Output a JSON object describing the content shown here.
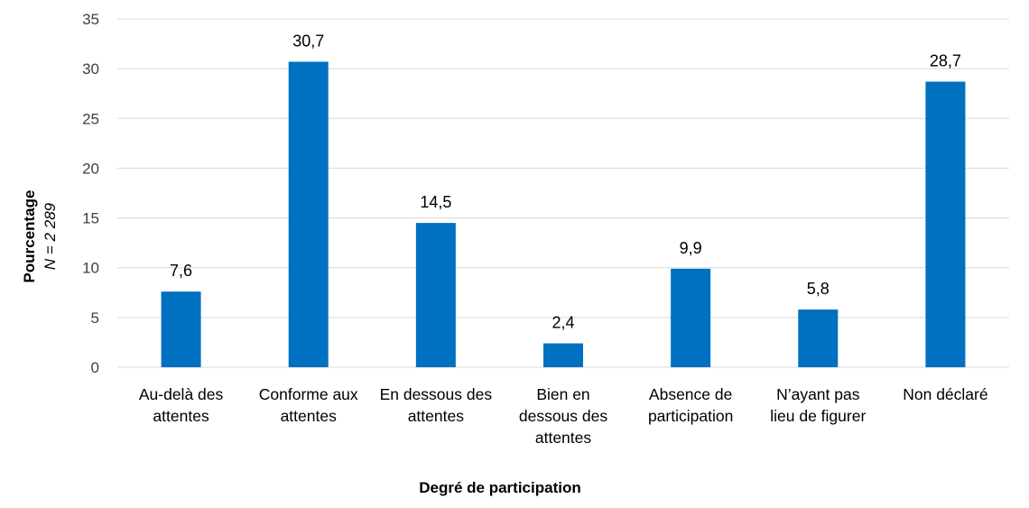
{
  "chart_data": {
    "type": "bar",
    "categories": [
      [
        "Au-delà des",
        "attentes"
      ],
      [
        "Conforme aux",
        "attentes"
      ],
      [
        "En dessous des",
        "attentes"
      ],
      [
        "Bien en",
        "dessous des",
        "attentes"
      ],
      [
        "Absence de",
        "participation"
      ],
      [
        "N’ayant pas",
        "lieu de figurer"
      ],
      [
        "Non déclaré"
      ]
    ],
    "values": [
      7.6,
      30.7,
      14.5,
      2.4,
      9.9,
      5.8,
      28.7
    ],
    "data_labels": [
      "7,6",
      "30,7",
      "14,5",
      "2,4",
      "9,9",
      "5,8",
      "28,7"
    ],
    "ylim": [
      0,
      35
    ],
    "yticks": [
      0,
      5,
      10,
      15,
      20,
      25,
      30,
      35
    ],
    "ylabel": "Pourcentage",
    "ylabel_sub": "N = 2 289",
    "xlabel": "Degré de participation",
    "grid": true,
    "legend": "none",
    "bar_color": "#0070c0"
  }
}
